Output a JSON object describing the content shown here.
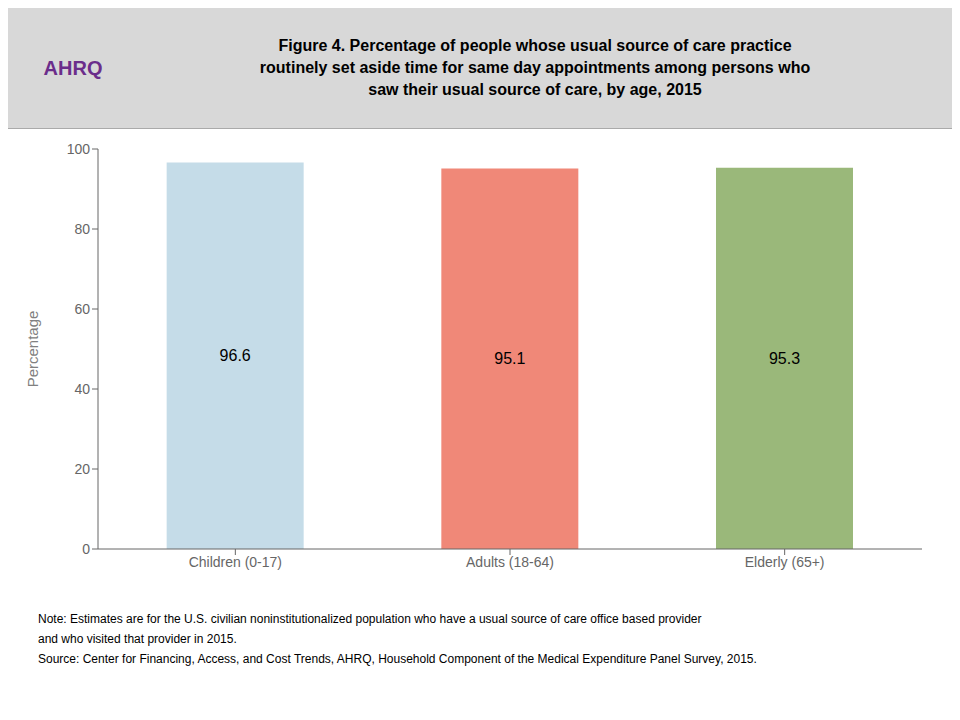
{
  "chart_data": {
    "type": "bar",
    "title": "Figure 4. Percentage of people whose usual source of care practice\nroutinely set aside time for same day appointments among persons who\nsaw their usual source of care, by age, 2015",
    "categories": [
      "Children (0-17)",
      "Adults (18-64)",
      "Elderly (65+)"
    ],
    "values": [
      96.6,
      95.1,
      95.3
    ],
    "colors": [
      "#c5dce8",
      "#f08878",
      "#9ab87a"
    ],
    "ylabel": "Percentage",
    "ylim": [
      0,
      100
    ],
    "yticks": [
      0,
      20,
      40,
      60,
      80,
      100
    ],
    "data_labels": true,
    "grid": false,
    "annotations": [
      "AHRQ",
      "Note: Estimates are for the U.S. civilian noninstitutionalized population who have a usual source of care office based provider",
      "and who visited that provider in 2015.",
      "Source: Center for Financing, Access, and Cost Trends, AHRQ, Household Component of the Medical Expenditure Panel Survey, 2015."
    ]
  }
}
